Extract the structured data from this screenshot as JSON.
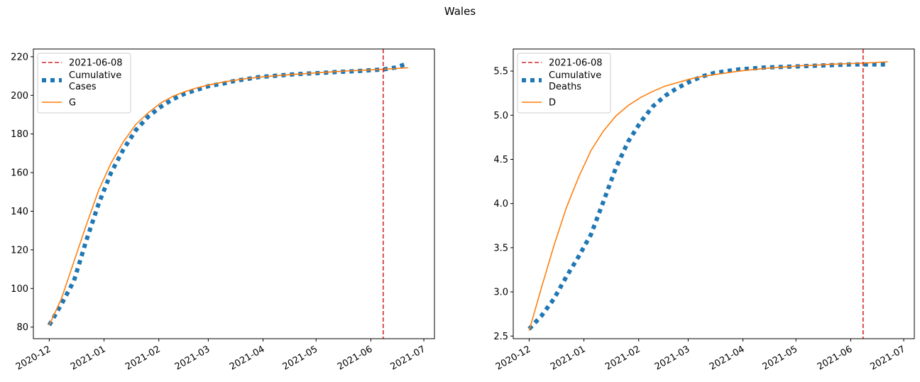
{
  "figure_title": "Wales",
  "colors": {
    "observed": "#1f77b4",
    "model": "#ff7f0e",
    "vline": "#d62728"
  },
  "chart_data": [
    {
      "type": "line",
      "name": "cases",
      "x_ticks": [
        "2020-12",
        "2021-01",
        "2021-02",
        "2021-03",
        "2021-04",
        "2021-05",
        "2021-06",
        "2021-07"
      ],
      "xlim": [
        "2020-11-22",
        "2021-07-07"
      ],
      "ylim": [
        74,
        224
      ],
      "y_ticks": [
        80,
        100,
        120,
        140,
        160,
        180,
        200,
        220
      ],
      "grid": false,
      "legend_position": "upper left",
      "vline": {
        "label": "2021-06-08",
        "x": "2021-06-08"
      },
      "series": [
        {
          "name": "Cumulative\nCases",
          "style": "dotted-thick",
          "x": [
            "2020-12-01",
            "2020-12-08",
            "2020-12-15",
            "2020-12-22",
            "2020-12-29",
            "2021-01-05",
            "2021-01-12",
            "2021-01-19",
            "2021-01-26",
            "2021-02-02",
            "2021-02-09",
            "2021-02-16",
            "2021-02-23",
            "2021-03-02",
            "2021-03-09",
            "2021-03-16",
            "2021-03-23",
            "2021-03-30",
            "2021-04-06",
            "2021-04-13",
            "2021-04-20",
            "2021-04-27",
            "2021-05-04",
            "2021-05-11",
            "2021-05-18",
            "2021-05-25",
            "2021-06-01",
            "2021-06-08",
            "2021-06-15",
            "2021-06-22"
          ],
          "values": [
            81,
            92,
            104,
            125,
            144,
            160,
            172,
            182,
            189,
            194,
            198,
            201,
            203,
            205,
            206,
            207.5,
            208.5,
            209.5,
            210,
            210.5,
            211,
            211.3,
            211.6,
            212,
            212.3,
            212.6,
            213,
            213.4,
            214.4,
            216.5
          ]
        },
        {
          "name": "G",
          "style": "solid",
          "x": [
            "2020-12-01",
            "2020-12-08",
            "2020-12-15",
            "2020-12-22",
            "2020-12-29",
            "2021-01-05",
            "2021-01-12",
            "2021-01-19",
            "2021-01-26",
            "2021-02-02",
            "2021-02-09",
            "2021-02-16",
            "2021-02-23",
            "2021-03-02",
            "2021-03-09",
            "2021-03-16",
            "2021-03-23",
            "2021-03-30",
            "2021-04-06",
            "2021-04-13",
            "2021-04-20",
            "2021-04-27",
            "2021-05-04",
            "2021-05-11",
            "2021-05-18",
            "2021-05-25",
            "2021-06-01",
            "2021-06-08",
            "2021-06-15",
            "2021-06-22"
          ],
          "values": [
            81,
            95,
            114,
            133,
            151,
            165,
            176,
            185,
            191,
            196,
            199.5,
            202,
            204,
            205.5,
            206.8,
            207.8,
            208.7,
            209.4,
            210,
            210.5,
            211,
            211.4,
            211.8,
            212.2,
            212.6,
            212.9,
            213.2,
            213.5,
            213.9,
            214.3
          ]
        }
      ]
    },
    {
      "type": "line",
      "name": "deaths",
      "x_ticks": [
        "2020-12",
        "2021-01",
        "2021-02",
        "2021-03",
        "2021-04",
        "2021-05",
        "2021-06",
        "2021-07"
      ],
      "xlim": [
        "2020-11-22",
        "2021-07-07"
      ],
      "ylim": [
        2.47,
        5.75
      ],
      "y_ticks": [
        2.5,
        3.0,
        3.5,
        4.0,
        4.5,
        5.0,
        5.5
      ],
      "grid": false,
      "legend_position": "upper left",
      "vline": {
        "label": "2021-06-08",
        "x": "2021-06-08"
      },
      "series": [
        {
          "name": "Cumulative\nDeaths",
          "style": "dotted-thick",
          "x": [
            "2020-12-01",
            "2020-12-08",
            "2020-12-15",
            "2020-12-22",
            "2020-12-29",
            "2021-01-05",
            "2021-01-12",
            "2021-01-19",
            "2021-01-26",
            "2021-02-02",
            "2021-02-09",
            "2021-02-16",
            "2021-02-23",
            "2021-03-02",
            "2021-03-09",
            "2021-03-16",
            "2021-03-23",
            "2021-03-30",
            "2021-04-06",
            "2021-04-13",
            "2021-04-20",
            "2021-04-27",
            "2021-05-04",
            "2021-05-11",
            "2021-05-18",
            "2021-05-25",
            "2021-06-01",
            "2021-06-08",
            "2021-06-15",
            "2021-06-22"
          ],
          "values": [
            2.58,
            2.73,
            2.92,
            3.17,
            3.4,
            3.65,
            4.02,
            4.4,
            4.7,
            4.92,
            5.1,
            5.22,
            5.31,
            5.38,
            5.44,
            5.48,
            5.5,
            5.52,
            5.53,
            5.54,
            5.545,
            5.55,
            5.555,
            5.56,
            5.565,
            5.57,
            5.575,
            5.575,
            5.575,
            5.575
          ]
        },
        {
          "name": "D",
          "style": "solid",
          "x": [
            "2020-12-01",
            "2020-12-08",
            "2020-12-15",
            "2020-12-22",
            "2020-12-29",
            "2021-01-05",
            "2021-01-12",
            "2021-01-19",
            "2021-01-26",
            "2021-02-02",
            "2021-02-09",
            "2021-02-16",
            "2021-02-23",
            "2021-03-02",
            "2021-03-09",
            "2021-03-16",
            "2021-03-23",
            "2021-03-30",
            "2021-04-06",
            "2021-04-13",
            "2021-04-20",
            "2021-04-27",
            "2021-05-04",
            "2021-05-11",
            "2021-05-18",
            "2021-05-25",
            "2021-06-01",
            "2021-06-08",
            "2021-06-15",
            "2021-06-22"
          ],
          "values": [
            2.56,
            3.05,
            3.52,
            3.95,
            4.3,
            4.6,
            4.82,
            4.99,
            5.11,
            5.2,
            5.27,
            5.33,
            5.37,
            5.41,
            5.44,
            5.46,
            5.48,
            5.5,
            5.515,
            5.53,
            5.54,
            5.55,
            5.56,
            5.565,
            5.575,
            5.58,
            5.585,
            5.59,
            5.597,
            5.605
          ]
        }
      ]
    }
  ]
}
